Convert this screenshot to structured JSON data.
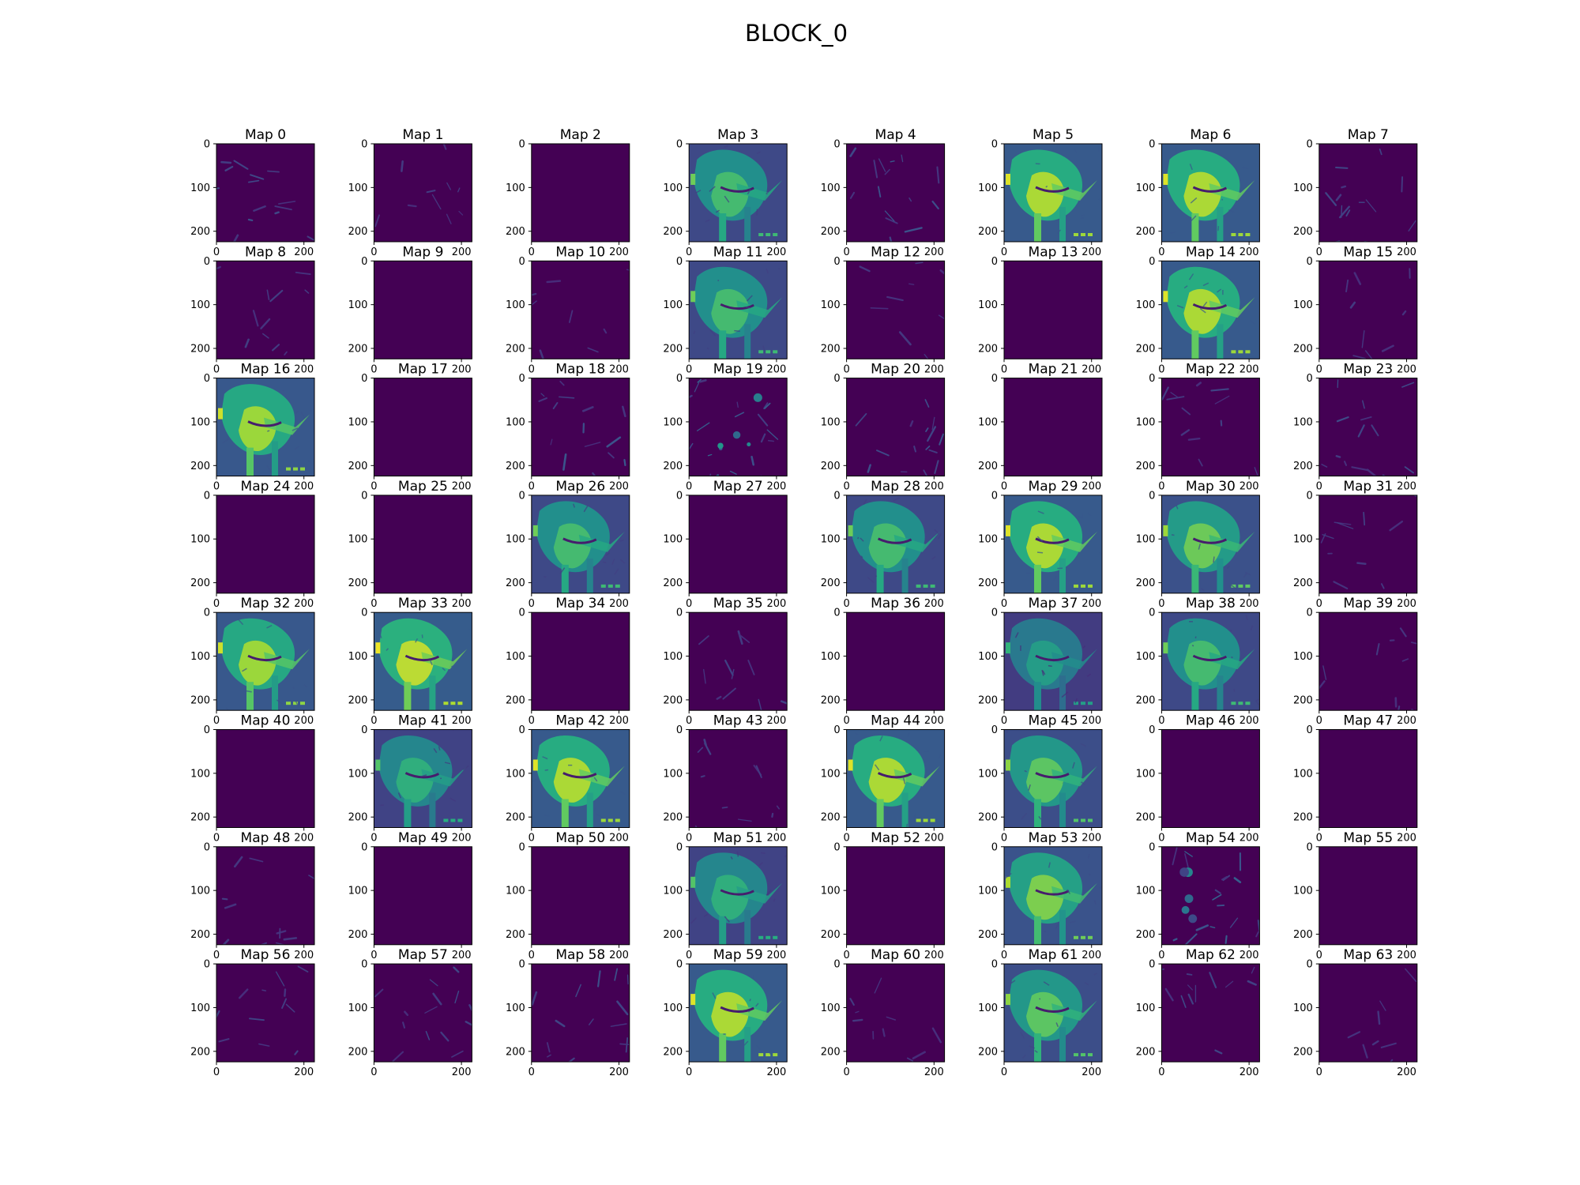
{
  "chart_data": {
    "type": "heatmap",
    "title": "BLOCK_0",
    "grid": {
      "rows": 8,
      "cols": 8
    },
    "colormap": {
      "name": "viridis",
      "stops": [
        "#440154",
        "#472d7b",
        "#3b528b",
        "#2c728e",
        "#21918c",
        "#28ae80",
        "#5ec962",
        "#addc30",
        "#fde725"
      ]
    },
    "axes": {
      "xlim": [
        0,
        224
      ],
      "ylim": [
        224,
        0
      ],
      "xticks": [
        0,
        200
      ],
      "yticks": [
        0,
        100,
        200
      ],
      "xtick_labels": [
        "0",
        "200"
      ],
      "ytick_labels": [
        "0",
        "100",
        "200"
      ]
    },
    "maps": [
      {
        "label": "Map 0",
        "type": "sparse",
        "intensity": 0.25
      },
      {
        "label": "Map 1",
        "type": "sparse",
        "intensity": 0.12
      },
      {
        "label": "Map 2",
        "type": "empty",
        "intensity": 0.0
      },
      {
        "label": "Map 3",
        "type": "dog",
        "intensity": 0.55
      },
      {
        "label": "Map 4",
        "type": "sparse",
        "intensity": 0.3
      },
      {
        "label": "Map 5",
        "type": "dog",
        "intensity": 0.9
      },
      {
        "label": "Map 6",
        "type": "dog",
        "intensity": 0.9
      },
      {
        "label": "Map 7",
        "type": "sparse",
        "intensity": 0.25
      },
      {
        "label": "Map 8",
        "type": "sparse",
        "intensity": 0.15
      },
      {
        "label": "Map 9",
        "type": "empty",
        "intensity": 0.0
      },
      {
        "label": "Map 10",
        "type": "sparse",
        "intensity": 0.08
      },
      {
        "label": "Map 11",
        "type": "dog",
        "intensity": 0.55
      },
      {
        "label": "Map 12",
        "type": "sparse",
        "intensity": 0.1
      },
      {
        "label": "Map 13",
        "type": "empty",
        "intensity": 0.0
      },
      {
        "label": "Map 14",
        "type": "dog",
        "intensity": 0.9
      },
      {
        "label": "Map 15",
        "type": "sparse",
        "intensity": 0.1
      },
      {
        "label": "Map 16",
        "type": "dog",
        "intensity": 0.85
      },
      {
        "label": "Map 17",
        "type": "empty",
        "intensity": 0.0
      },
      {
        "label": "Map 18",
        "type": "sparse",
        "intensity": 0.3
      },
      {
        "label": "Map 19",
        "type": "sparse",
        "intensity": 0.45
      },
      {
        "label": "Map 20",
        "type": "sparse",
        "intensity": 0.3
      },
      {
        "label": "Map 21",
        "type": "empty",
        "intensity": 0.0
      },
      {
        "label": "Map 22",
        "type": "sparse",
        "intensity": 0.2
      },
      {
        "label": "Map 23",
        "type": "sparse",
        "intensity": 0.25
      },
      {
        "label": "Map 24",
        "type": "empty",
        "intensity": 0.0
      },
      {
        "label": "Map 25",
        "type": "empty",
        "intensity": 0.0
      },
      {
        "label": "Map 26",
        "type": "dog",
        "intensity": 0.55
      },
      {
        "label": "Map 27",
        "type": "empty",
        "intensity": 0.0
      },
      {
        "label": "Map 28",
        "type": "dog",
        "intensity": 0.55
      },
      {
        "label": "Map 29",
        "type": "dog",
        "intensity": 0.9
      },
      {
        "label": "Map 30",
        "type": "dog",
        "intensity": 0.7
      },
      {
        "label": "Map 31",
        "type": "sparse",
        "intensity": 0.15
      },
      {
        "label": "Map 32",
        "type": "dog",
        "intensity": 0.85
      },
      {
        "label": "Map 33",
        "type": "dog",
        "intensity": 0.95
      },
      {
        "label": "Map 34",
        "type": "empty",
        "intensity": 0.0
      },
      {
        "label": "Map 35",
        "type": "sparse",
        "intensity": 0.15
      },
      {
        "label": "Map 36",
        "type": "empty",
        "intensity": 0.0
      },
      {
        "label": "Map 37",
        "type": "dog",
        "intensity": 0.3
      },
      {
        "label": "Map 38",
        "type": "dog",
        "intensity": 0.55
      },
      {
        "label": "Map 39",
        "type": "sparse",
        "intensity": 0.12
      },
      {
        "label": "Map 40",
        "type": "empty",
        "intensity": 0.0
      },
      {
        "label": "Map 41",
        "type": "dog",
        "intensity": 0.45
      },
      {
        "label": "Map 42",
        "type": "dog",
        "intensity": 0.9
      },
      {
        "label": "Map 43",
        "type": "sparse",
        "intensity": 0.15
      },
      {
        "label": "Map 44",
        "type": "dog",
        "intensity": 0.9
      },
      {
        "label": "Map 45",
        "type": "dog",
        "intensity": 0.65
      },
      {
        "label": "Map 46",
        "type": "empty",
        "intensity": 0.0
      },
      {
        "label": "Map 47",
        "type": "empty",
        "intensity": 0.0
      },
      {
        "label": "Map 48",
        "type": "sparse",
        "intensity": 0.15
      },
      {
        "label": "Map 49",
        "type": "empty",
        "intensity": 0.0
      },
      {
        "label": "Map 50",
        "type": "empty",
        "intensity": 0.0
      },
      {
        "label": "Map 51",
        "type": "dog",
        "intensity": 0.45
      },
      {
        "label": "Map 52",
        "type": "empty",
        "intensity": 0.0
      },
      {
        "label": "Map 53",
        "type": "dog",
        "intensity": 0.75
      },
      {
        "label": "Map 54",
        "type": "sparse",
        "intensity": 0.4
      },
      {
        "label": "Map 55",
        "type": "empty",
        "intensity": 0.0
      },
      {
        "label": "Map 56",
        "type": "sparse",
        "intensity": 0.2
      },
      {
        "label": "Map 57",
        "type": "sparse",
        "intensity": 0.25
      },
      {
        "label": "Map 58",
        "type": "sparse",
        "intensity": 0.25
      },
      {
        "label": "Map 59",
        "type": "dog",
        "intensity": 0.9
      },
      {
        "label": "Map 60",
        "type": "sparse",
        "intensity": 0.12
      },
      {
        "label": "Map 61",
        "type": "dog",
        "intensity": 0.65
      },
      {
        "label": "Map 62",
        "type": "sparse",
        "intensity": 0.2
      },
      {
        "label": "Map 63",
        "type": "sparse",
        "intensity": 0.08
      }
    ]
  }
}
